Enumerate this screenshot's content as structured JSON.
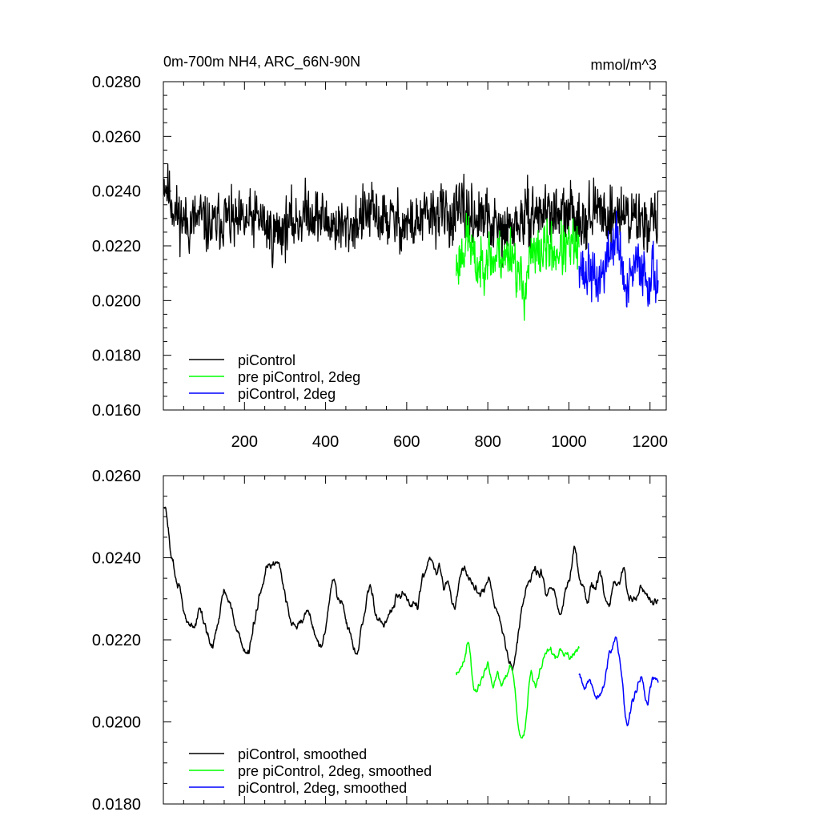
{
  "chart_data": [
    {
      "type": "line",
      "title": "0m-700m NH4, ARC_66N-90N",
      "units": "mmol/m^3",
      "xlim": [
        0,
        1240
      ],
      "ylim": [
        0.016,
        0.028
      ],
      "xticks": [
        200,
        400,
        600,
        800,
        1000,
        1200
      ],
      "xtick_labels": [
        "200",
        "400",
        "600",
        "800",
        "1000",
        "1200"
      ],
      "yticks": [
        0.016,
        0.018,
        0.02,
        0.022,
        0.024,
        0.026,
        0.028
      ],
      "ytick_labels": [
        "0.0160",
        "0.0180",
        "0.0200",
        "0.0220",
        "0.0240",
        "0.0260",
        "0.0280"
      ],
      "legend_position": "bottom-left",
      "series": [
        {
          "name": "piControl",
          "color": "#000000",
          "x_start": 1,
          "x_end": 1220,
          "mean": [
            0.0245,
            0.0232,
            0.0228,
            0.023,
            0.0226,
            0.0231,
            0.0227,
            0.0229,
            0.023,
            0.0224,
            0.0227,
            0.0229,
            0.0233,
            0.023,
            0.0228,
            0.0226,
            0.0229,
            0.0232,
            0.023,
            0.0229,
            0.0228,
            0.0228,
            0.0231,
            0.0232,
            0.023,
            0.0233,
            0.023,
            0.0229,
            0.0224,
            0.0227,
            0.023,
            0.0232,
            0.0233,
            0.023,
            0.0232,
            0.023,
            0.0233,
            0.0231,
            0.0232,
            0.023,
            0.0229,
            0.023
          ],
          "amplitude": 0.0014,
          "seed": 11
        },
        {
          "name": "pre piControl, 2deg",
          "color": "#00ff00",
          "x_start": 722,
          "x_end": 1025,
          "mean": [
            0.0212,
            0.0218,
            0.0224,
            0.0213,
            0.0212,
            0.0218,
            0.0214,
            0.0218,
            0.0215,
            0.022,
            0.021,
            0.0203,
            0.0215,
            0.0216,
            0.0218,
            0.022,
            0.0217,
            0.0219,
            0.0218,
            0.022,
            0.0218
          ],
          "amplitude": 0.0013,
          "seed": 23
        },
        {
          "name": "piControl, 2deg",
          "color": "#0000ff",
          "x_start": 1025,
          "x_end": 1220,
          "mean": [
            0.0217,
            0.0208,
            0.0212,
            0.0206,
            0.0208,
            0.0213,
            0.0219,
            0.0224,
            0.0215,
            0.02,
            0.0209,
            0.0213,
            0.0213,
            0.0207,
            0.0212,
            0.0206
          ],
          "amplitude": 0.0013,
          "seed": 37
        }
      ]
    },
    {
      "type": "line",
      "title": "",
      "xlim": [
        0,
        1240
      ],
      "ylim": [
        0.018,
        0.026
      ],
      "xticks": [
        200,
        400,
        600,
        800,
        1000,
        1200
      ],
      "xtick_labels": [],
      "yticks": [
        0.018,
        0.02,
        0.022,
        0.024,
        0.026
      ],
      "ytick_labels": [
        "0.0180",
        "0.0200",
        "0.0220",
        "0.0240",
        "0.0260"
      ],
      "legend_position": "bottom-left",
      "series": [
        {
          "name": "piControl, smoothed",
          "color": "#000000",
          "x_start": 1,
          "x_end": 1220,
          "mean": [
            0.0253,
            0.0236,
            0.0222,
            0.0228,
            0.0218,
            0.0232,
            0.0224,
            0.0215,
            0.023,
            0.024,
            0.0232,
            0.0222,
            0.0228,
            0.0216,
            0.0234,
            0.0227,
            0.0215,
            0.0233,
            0.0224,
            0.0228,
            0.023,
            0.0228,
            0.024,
            0.0236,
            0.0227,
            0.0238,
            0.023,
            0.0236,
            0.0222,
            0.0212,
            0.0232,
            0.0237,
            0.0234,
            0.0225,
            0.0241,
            0.0231,
            0.0235,
            0.023,
            0.0236,
            0.0228,
            0.0232,
            0.023
          ],
          "amplitude": 0.0008,
          "seed": 51
        },
        {
          "name": "pre piControl, 2deg, smoothed",
          "color": "#00ff00",
          "x_start": 722,
          "x_end": 1025,
          "mean": [
            0.021,
            0.0215,
            0.0222,
            0.0205,
            0.021,
            0.0215,
            0.021,
            0.0214,
            0.021,
            0.0217,
            0.02,
            0.0196,
            0.0212,
            0.0208,
            0.0215,
            0.0219,
            0.0214,
            0.0217,
            0.0216,
            0.0218,
            0.0219
          ],
          "amplitude": 0.0007,
          "seed": 63
        },
        {
          "name": "piControl, 2deg, smoothed",
          "color": "#0000ff",
          "x_start": 1025,
          "x_end": 1220,
          "mean": [
            0.0214,
            0.0206,
            0.021,
            0.0205,
            0.0206,
            0.0211,
            0.0217,
            0.0221,
            0.0212,
            0.0197,
            0.0204,
            0.0208,
            0.021,
            0.0202,
            0.0212,
            0.0207
          ],
          "amplitude": 0.0007,
          "seed": 77
        }
      ]
    }
  ]
}
